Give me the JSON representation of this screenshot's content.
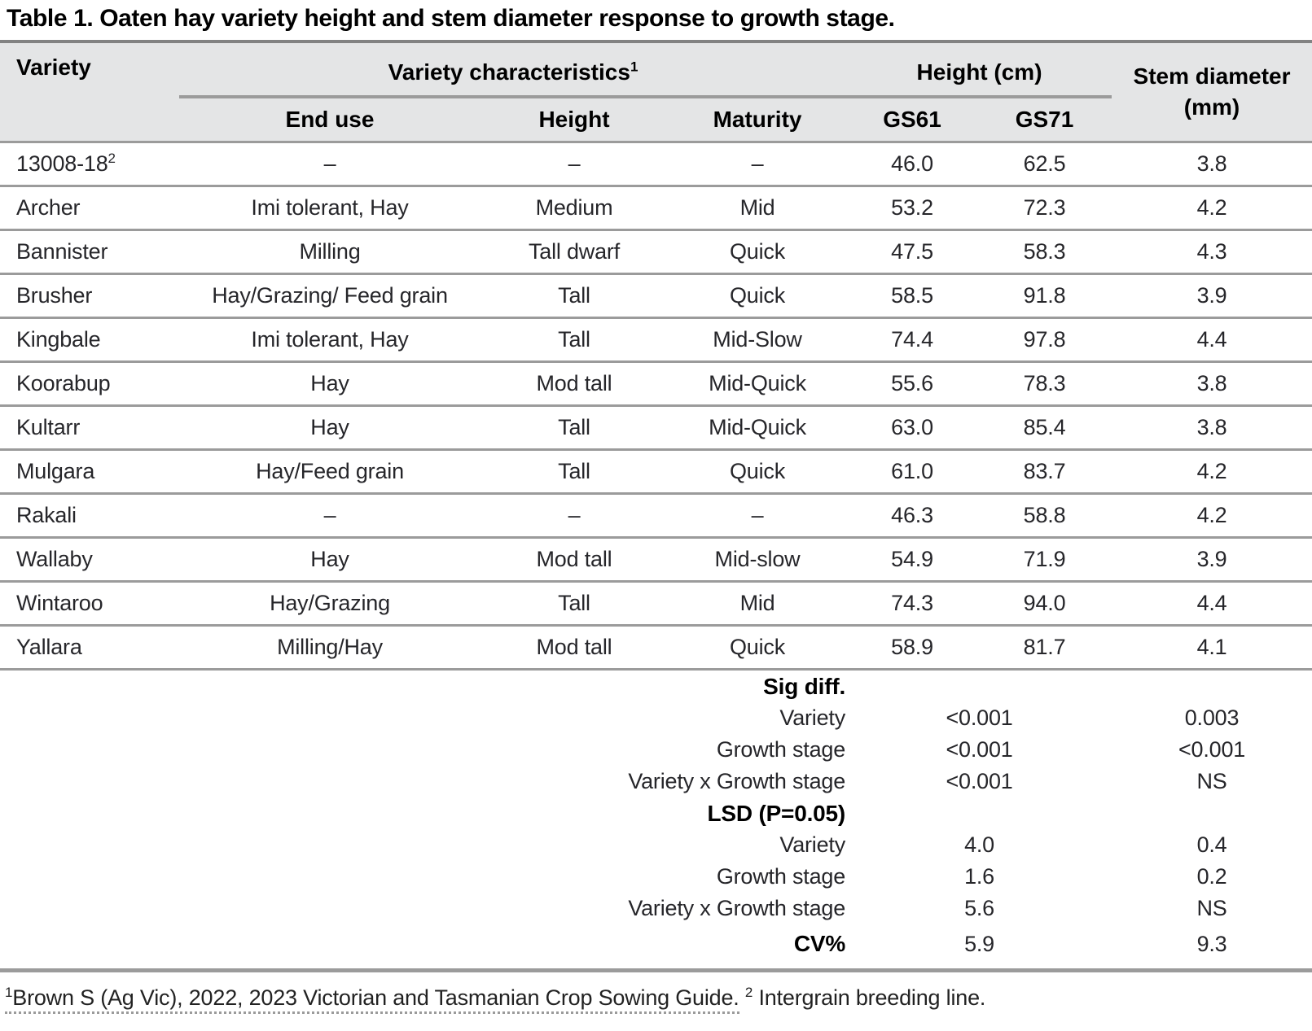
{
  "title": "Table 1. Oaten hay variety height and stem diameter response to growth stage.",
  "colors": {
    "header_bg": "#e4e5e6",
    "rule_gray": "#9b9b9b",
    "header_top_rule": "#828282",
    "text": "#1d1d20"
  },
  "table": {
    "columns": {
      "variety": "Variety",
      "characteristics_group": "Variety characteristics",
      "characteristics_sup": "1",
      "height_group": "Height (cm)",
      "stem_diameter": "Stem diameter (mm)",
      "end_use": "End use",
      "height": "Height",
      "maturity": "Maturity",
      "gs61": "GS61",
      "gs71": "GS71"
    },
    "rows": [
      {
        "variety": "13008-18",
        "variety_sup": "2",
        "end_use": "–",
        "height": "–",
        "maturity": "–",
        "gs61": "46.0",
        "gs71": "62.5",
        "stem": "3.8"
      },
      {
        "variety": "Archer",
        "variety_sup": "",
        "end_use": "Imi tolerant, Hay",
        "height": "Medium",
        "maturity": "Mid",
        "gs61": "53.2",
        "gs71": "72.3",
        "stem": "4.2"
      },
      {
        "variety": "Bannister",
        "variety_sup": "",
        "end_use": "Milling",
        "height": "Tall dwarf",
        "maturity": "Quick",
        "gs61": "47.5",
        "gs71": "58.3",
        "stem": "4.3"
      },
      {
        "variety": "Brusher",
        "variety_sup": "",
        "end_use": "Hay/Grazing/ Feed grain",
        "height": "Tall",
        "maturity": "Quick",
        "gs61": "58.5",
        "gs71": "91.8",
        "stem": "3.9"
      },
      {
        "variety": "Kingbale",
        "variety_sup": "",
        "end_use": "Imi tolerant, Hay",
        "height": "Tall",
        "maturity": "Mid-Slow",
        "gs61": "74.4",
        "gs71": "97.8",
        "stem": "4.4"
      },
      {
        "variety": "Koorabup",
        "variety_sup": "",
        "end_use": "Hay",
        "height": "Mod tall",
        "maturity": "Mid-Quick",
        "gs61": "55.6",
        "gs71": "78.3",
        "stem": "3.8"
      },
      {
        "variety": "Kultarr",
        "variety_sup": "",
        "end_use": "Hay",
        "height": "Tall",
        "maturity": "Mid-Quick",
        "gs61": "63.0",
        "gs71": "85.4",
        "stem": "3.8"
      },
      {
        "variety": "Mulgara",
        "variety_sup": "",
        "end_use": "Hay/Feed grain",
        "height": "Tall",
        "maturity": "Quick",
        "gs61": "61.0",
        "gs71": "83.7",
        "stem": "4.2"
      },
      {
        "variety": "Rakali",
        "variety_sup": "",
        "end_use": "–",
        "height": "–",
        "maturity": "–",
        "gs61": "46.3",
        "gs71": "58.8",
        "stem": "4.2"
      },
      {
        "variety": "Wallaby",
        "variety_sup": "",
        "end_use": "Hay",
        "height": "Mod tall",
        "maturity": "Mid-slow",
        "gs61": "54.9",
        "gs71": "71.9",
        "stem": "3.9"
      },
      {
        "variety": "Wintaroo",
        "variety_sup": "",
        "end_use": "Hay/Grazing",
        "height": "Tall",
        "maturity": "Mid",
        "gs61": "74.3",
        "gs71": "94.0",
        "stem": "4.4"
      },
      {
        "variety": "Yallara",
        "variety_sup": "",
        "end_use": "Milling/Hay",
        "height": "Mod tall",
        "maturity": "Quick",
        "gs61": "58.9",
        "gs71": "81.7",
        "stem": "4.1"
      }
    ],
    "stats": [
      {
        "label": "Sig diff.",
        "bold": true,
        "height_value": "",
        "stem_value": ""
      },
      {
        "label": "Variety",
        "bold": false,
        "height_value": "<0.001",
        "stem_value": "0.003"
      },
      {
        "label": "Growth stage",
        "bold": false,
        "height_value": "<0.001",
        "stem_value": "<0.001"
      },
      {
        "label": "Variety x Growth stage",
        "bold": false,
        "height_value": "<0.001",
        "stem_value": "NS"
      },
      {
        "label": "LSD (P=0.05)",
        "bold": true,
        "height_value": "",
        "stem_value": ""
      },
      {
        "label": "Variety",
        "bold": false,
        "height_value": "4.0",
        "stem_value": "0.4"
      },
      {
        "label": "Growth stage",
        "bold": false,
        "height_value": "1.6",
        "stem_value": "0.2"
      },
      {
        "label": "Variety x Growth stage",
        "bold": false,
        "height_value": "5.6",
        "stem_value": "NS"
      },
      {
        "label": "CV%",
        "bold": true,
        "height_value": "5.9",
        "stem_value": "9.3"
      }
    ]
  },
  "footnote": {
    "sup1": "1",
    "citation": "Brown S (Ag Vic), 2022, 2023 Victorian and Tasmanian Crop Sowing Guide.",
    "sup2": "2",
    "note": "Intergrain breeding line."
  }
}
